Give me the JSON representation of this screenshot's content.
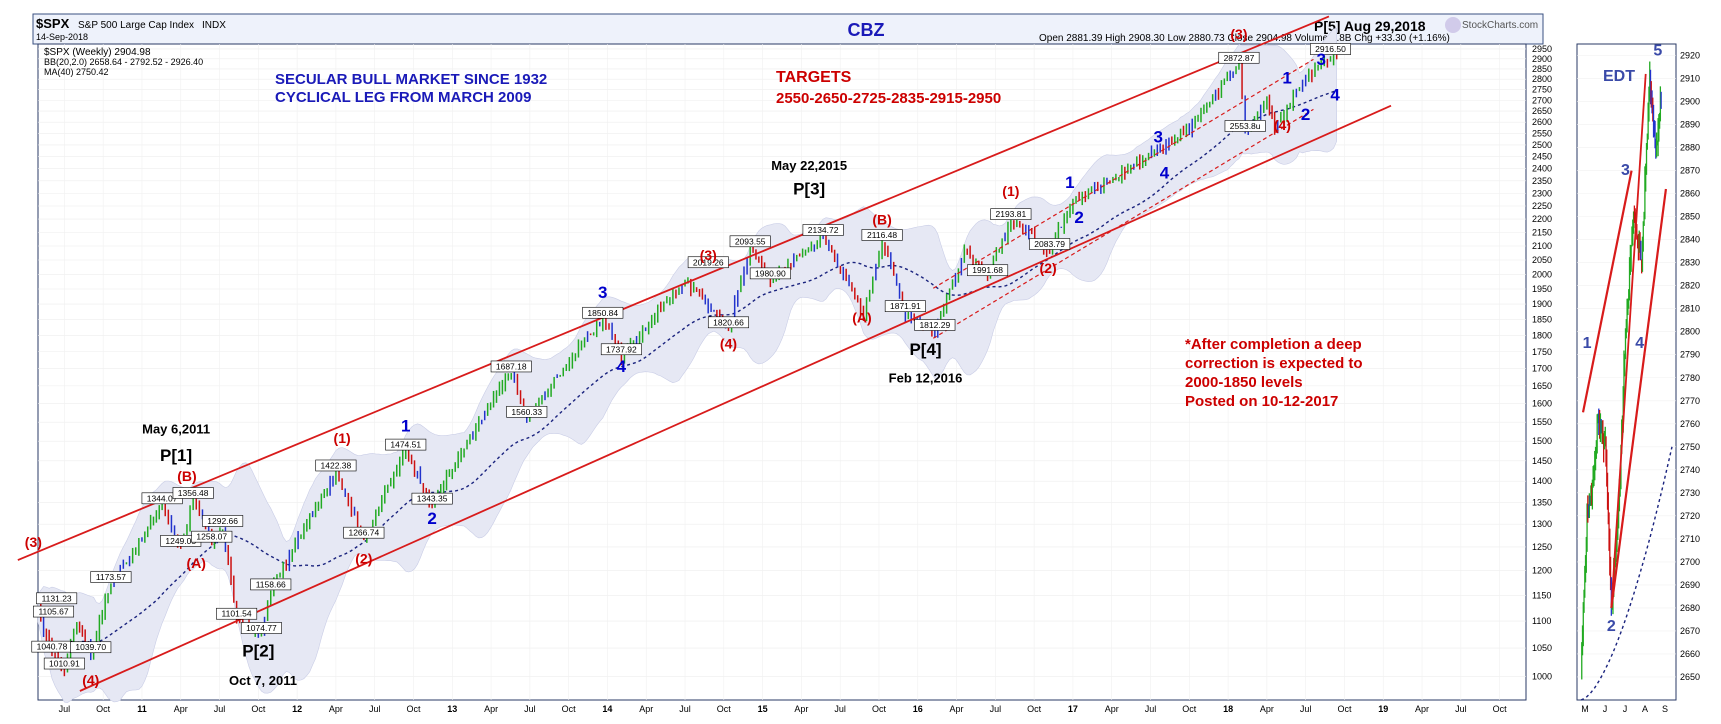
{
  "header": {
    "symbol": "$SPX",
    "name": "S&P 500 Large Cap Index",
    "exchange": "INDX",
    "date": "14-Sep-2018",
    "title": "CBZ",
    "brand": "StockCharts.com",
    "ohlc": "Open 2881.39  High 2908.30  Low 2880.73  Close 2904.98  Volume 9.8B  Chg +33.30 (+1.16%)",
    "legend": [
      "$SPX (Weekly) 2904.98",
      "BB(20,2.0) 2658.64 - 2792.52 - 2926.40",
      "MA(40) 2750.42"
    ]
  },
  "notes": {
    "secular": [
      "SECULAR BULL MARKET SINCE 1932",
      "CYCLICAL LEG FROM MARCH 2009"
    ],
    "targets": [
      "TARGETS",
      "2550-2650-2725-2835-2915-2950"
    ],
    "after": [
      "*After completion a deep",
      "correction is expected to",
      "2000-1850 levels",
      "Posted on 10-12-2017"
    ],
    "p5": "P[5] Aug 29,2018",
    "inset_title": "EDT"
  },
  "chart_data": [
    {
      "type": "candlestick",
      "title": "CBZ",
      "scale": "log",
      "ylim": [
        960,
        2975
      ],
      "y_ticks": [
        1000,
        1050,
        1100,
        1150,
        1200,
        1250,
        1300,
        1350,
        1400,
        1450,
        1500,
        1550,
        1600,
        1650,
        1700,
        1750,
        1800,
        1850,
        1900,
        1950,
        2000,
        2050,
        2100,
        2150,
        2200,
        2250,
        2300,
        2350,
        2400,
        2450,
        2500,
        2550,
        2600,
        2650,
        2700,
        2750,
        2800,
        2850,
        2900,
        2950
      ],
      "x_ticks": [
        "Jul",
        "Oct",
        "11",
        "Apr",
        "Jul",
        "Oct",
        "12",
        "Apr",
        "Jul",
        "Oct",
        "13",
        "Apr",
        "Jul",
        "Oct",
        "14",
        "Apr",
        "Jul",
        "Oct",
        "15",
        "Apr",
        "Jul",
        "Oct",
        "16",
        "Apr",
        "Jul",
        "Oct",
        "17",
        "Apr",
        "Jul",
        "Oct",
        "18",
        "Apr",
        "Jul",
        "Oct",
        "19",
        "Apr",
        "Jul",
        "Oct"
      ],
      "x_range": [
        2010.33,
        2019.92
      ],
      "weekly_anchors": [
        [
          2010.33,
          1120
        ],
        [
          2010.42,
          1040.78
        ],
        [
          2010.5,
          1010.91
        ],
        [
          2010.58,
          1100
        ],
        [
          2010.67,
          1039.7
        ],
        [
          2010.8,
          1173.57
        ],
        [
          2011.0,
          1270
        ],
        [
          2011.13,
          1344.07
        ],
        [
          2011.25,
          1249.05
        ],
        [
          2011.33,
          1356.48
        ],
        [
          2011.45,
          1258.07
        ],
        [
          2011.52,
          1292.66
        ],
        [
          2011.61,
          1101.54
        ],
        [
          2011.77,
          1074.77
        ],
        [
          2011.83,
          1158.66
        ],
        [
          2011.95,
          1230
        ],
        [
          2012.25,
          1422.38
        ],
        [
          2012.43,
          1266.74
        ],
        [
          2012.7,
          1474.51
        ],
        [
          2012.87,
          1343.35
        ],
        [
          2013.0,
          1430
        ],
        [
          2013.38,
          1687.18
        ],
        [
          2013.48,
          1560.33
        ],
        [
          2013.97,
          1850.84
        ],
        [
          2014.09,
          1737.92
        ],
        [
          2014.5,
          1980
        ],
        [
          2014.78,
          1820.66
        ],
        [
          2014.92,
          2093.55
        ],
        [
          2015.05,
          1980.9
        ],
        [
          2015.39,
          2134.72
        ],
        [
          2015.65,
          1867.61
        ],
        [
          2015.77,
          2116.48
        ],
        [
          2015.92,
          1871.91
        ],
        [
          2016.11,
          1812.29
        ],
        [
          2016.3,
          2080
        ],
        [
          2016.45,
          1991.68
        ],
        [
          2016.6,
          2193.81
        ],
        [
          2016.85,
          2083.79
        ],
        [
          2017.0,
          2280
        ],
        [
          2017.2,
          2330
        ],
        [
          2017.45,
          2440
        ],
        [
          2017.75,
          2570
        ],
        [
          2018.07,
          2872.87
        ],
        [
          2018.11,
          2553.8
        ],
        [
          2018.25,
          2700
        ],
        [
          2018.3,
          2580
        ],
        [
          2018.5,
          2800
        ],
        [
          2018.66,
          2916.5
        ],
        [
          2018.7,
          2904.98
        ]
      ],
      "points": [
        {
          "x": 2010.8,
          "y": 1173.57,
          "label": "1173.57"
        },
        {
          "x": 2010.45,
          "y": 1131.23,
          "label": "1131.23"
        },
        {
          "x": 2010.43,
          "y": 1105.67,
          "label": "1105.67"
        },
        {
          "x": 2010.42,
          "y": 1040.78,
          "label": "1040.78"
        },
        {
          "x": 2010.5,
          "y": 1010.91,
          "label": "1010.91"
        },
        {
          "x": 2010.67,
          "y": 1039.7,
          "label": "1039.70"
        },
        {
          "x": 2011.13,
          "y": 1344.07,
          "label": "1344.07"
        },
        {
          "x": 2011.25,
          "y": 1249.05,
          "label": "1249.05"
        },
        {
          "x": 2011.33,
          "y": 1356.48,
          "label": "1356.48"
        },
        {
          "x": 2011.45,
          "y": 1258.07,
          "label": "1258.07"
        },
        {
          "x": 2011.52,
          "y": 1292.66,
          "label": "1292.66"
        },
        {
          "x": 2011.61,
          "y": 1101.54,
          "label": "1101.54"
        },
        {
          "x": 2011.77,
          "y": 1074.77,
          "label": "1074.77"
        },
        {
          "x": 2011.83,
          "y": 1158.66,
          "label": "1158.66"
        },
        {
          "x": 2012.25,
          "y": 1422.38,
          "label": "1422.38"
        },
        {
          "x": 2012.43,
          "y": 1266.74,
          "label": "1266.74"
        },
        {
          "x": 2012.7,
          "y": 1474.51,
          "label": "1474.51"
        },
        {
          "x": 2012.87,
          "y": 1343.35,
          "label": "1343.35"
        },
        {
          "x": 2013.38,
          "y": 1687.18,
          "label": "1687.18"
        },
        {
          "x": 2013.48,
          "y": 1560.33,
          "label": "1560.33"
        },
        {
          "x": 2013.97,
          "y": 1850.84,
          "label": "1850.84"
        },
        {
          "x": 2014.09,
          "y": 1737.92,
          "label": "1737.92"
        },
        {
          "x": 2014.65,
          "y": 2019.26,
          "label": "2019.26"
        },
        {
          "x": 2014.78,
          "y": 1820.66,
          "label": "1820.66"
        },
        {
          "x": 2014.92,
          "y": 2093.55,
          "label": "2093.55"
        },
        {
          "x": 2015.05,
          "y": 1980.9,
          "label": "1980.90"
        },
        {
          "x": 2015.39,
          "y": 2134.72,
          "label": "2134.72"
        },
        {
          "x": 2015.77,
          "y": 2116.48,
          "label": "2116.48"
        },
        {
          "x": 2015.92,
          "y": 1871.91,
          "label": "1871.91"
        },
        {
          "x": 2016.11,
          "y": 1812.29,
          "label": "1812.29"
        },
        {
          "x": 2016.45,
          "y": 1991.68,
          "label": "1991.68"
        },
        {
          "x": 2016.6,
          "y": 2193.81,
          "label": "2193.81"
        },
        {
          "x": 2016.85,
          "y": 2083.79,
          "label": "2083.79"
        },
        {
          "x": 2018.07,
          "y": 2872.87,
          "label": "2872.87"
        },
        {
          "x": 2018.11,
          "y": 2553.8,
          "label": "2553.8u"
        },
        {
          "x": 2018.66,
          "y": 2916.5,
          "label": "2916.50"
        }
      ],
      "waves": [
        {
          "x": 2010.3,
          "y": 1250,
          "text": "(3)",
          "color": "#cc0000"
        },
        {
          "x": 2010.67,
          "y": 985,
          "text": "(4)",
          "color": "#cc0000"
        },
        {
          "x": 2011.29,
          "y": 1400,
          "text": "(B)",
          "color": "#cc0000"
        },
        {
          "x": 2011.35,
          "y": 1205,
          "text": "(A)",
          "color": "#cc0000"
        },
        {
          "x": 2012.43,
          "y": 1215,
          "text": "(2)",
          "color": "#cc0000"
        },
        {
          "x": 2012.29,
          "y": 1495,
          "text": "(1)",
          "color": "#cc0000"
        },
        {
          "x": 2014.65,
          "y": 2050,
          "text": "(3)",
          "color": "#cc0000"
        },
        {
          "x": 2014.78,
          "y": 1760,
          "text": "(4)",
          "color": "#cc0000"
        },
        {
          "x": 2015.77,
          "y": 2180,
          "text": "(B)",
          "color": "#cc0000"
        },
        {
          "x": 2015.64,
          "y": 1840,
          "text": "(A)",
          "color": "#cc0000"
        },
        {
          "x": 2016.6,
          "y": 2290,
          "text": "(1)",
          "color": "#cc0000"
        },
        {
          "x": 2016.84,
          "y": 2005,
          "text": "(2)",
          "color": "#cc0000"
        },
        {
          "x": 2018.07,
          "y": 3000,
          "text": "(3)",
          "color": "#cc0000"
        },
        {
          "x": 2018.35,
          "y": 2565,
          "text": "(4)",
          "color": "#cc0000"
        },
        {
          "x": 2012.7,
          "y": 1525,
          "text": "1",
          "color": "#0000cc"
        },
        {
          "x": 2012.87,
          "y": 1300,
          "text": "2",
          "color": "#0000cc"
        },
        {
          "x": 2013.97,
          "y": 1920,
          "text": "3",
          "color": "#0000cc"
        },
        {
          "x": 2014.09,
          "y": 1690,
          "text": "4",
          "color": "#0000cc"
        },
        {
          "x": 2016.98,
          "y": 2320,
          "text": "1",
          "color": "#0000cc"
        },
        {
          "x": 2017.04,
          "y": 2185,
          "text": "2",
          "color": "#0000cc"
        },
        {
          "x": 2017.55,
          "y": 2510,
          "text": "3",
          "color": "#0000cc"
        },
        {
          "x": 2017.59,
          "y": 2360,
          "text": "4",
          "color": "#0000cc"
        },
        {
          "x": 2018.38,
          "y": 2780,
          "text": "1",
          "color": "#0000cc"
        },
        {
          "x": 2018.5,
          "y": 2610,
          "text": "2",
          "color": "#0000cc"
        },
        {
          "x": 2018.6,
          "y": 2870,
          "text": "3",
          "color": "#0000cc"
        },
        {
          "x": 2018.69,
          "y": 2700,
          "text": "4",
          "color": "#0000cc"
        },
        {
          "x": 2011.22,
          "y": 1520,
          "text": "May 6,2011",
          "color": "#000000"
        },
        {
          "x": 2011.22,
          "y": 1450,
          "text": "P[1]",
          "color": "#000000"
        },
        {
          "x": 2011.75,
          "y": 1035,
          "text": "P[2]",
          "color": "#000000"
        },
        {
          "x": 2011.78,
          "y": 985,
          "text": "Oct 7, 2011",
          "color": "#000000"
        },
        {
          "x": 2015.3,
          "y": 2395,
          "text": "May 22,2015",
          "color": "#000000"
        },
        {
          "x": 2015.3,
          "y": 2295,
          "text": "P[3]",
          "color": "#000000"
        },
        {
          "x": 2016.05,
          "y": 1740,
          "text": "P[4]",
          "color": "#000000"
        },
        {
          "x": 2016.05,
          "y": 1660,
          "text": "Feb 12,2016",
          "color": "#000000"
        }
      ],
      "channel": {
        "upper_from": [
          2010.2,
          1222
        ],
        "upper_to": [
          2018.65,
          3120
        ],
        "lower_from": [
          2010.6,
          975
        ],
        "lower_to": [
          2019.05,
          2675
        ],
        "mid_from": [
          2016.1,
          1870
        ],
        "mid_to": [
          2018.55,
          2775
        ]
      }
    },
    {
      "type": "line",
      "title": "EDT",
      "ylim": [
        2640,
        2925
      ],
      "y_ticks": [
        2650,
        2660,
        2670,
        2680,
        2690,
        2700,
        2710,
        2720,
        2730,
        2740,
        2750,
        2760,
        2770,
        2780,
        2790,
        2800,
        2810,
        2820,
        2830,
        2840,
        2850,
        2860,
        2870,
        2880,
        2890,
        2900,
        2910,
        2920
      ],
      "x_ticks": [
        "M",
        "J",
        "J",
        "A",
        "S"
      ],
      "x_range": [
        2018.3,
        2018.75
      ],
      "anchors": [
        [
          2018.3,
          2652
        ],
        [
          2018.33,
          2720
        ],
        [
          2018.36,
          2735
        ],
        [
          2018.38,
          2760
        ],
        [
          2018.42,
          2750
        ],
        [
          2018.45,
          2680
        ],
        [
          2018.49,
          2730
        ],
        [
          2018.52,
          2800
        ],
        [
          2018.56,
          2850
        ],
        [
          2018.6,
          2830
        ],
        [
          2018.64,
          2912
        ],
        [
          2018.67,
          2880
        ],
        [
          2018.7,
          2904
        ]
      ],
      "waves": [
        {
          "x": 2018.33,
          "y": 2793,
          "text": "1"
        },
        {
          "x": 2018.45,
          "y": 2670,
          "text": "2"
        },
        {
          "x": 2018.52,
          "y": 2868,
          "text": "3"
        },
        {
          "x": 2018.59,
          "y": 2793,
          "text": "4"
        },
        {
          "x": 2018.68,
          "y": 2920,
          "text": "5"
        }
      ]
    }
  ]
}
